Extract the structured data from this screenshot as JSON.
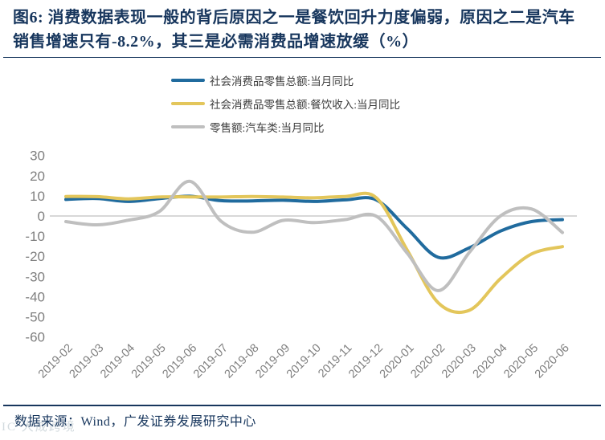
{
  "title": {
    "line1": "图6: 消费数据表现一般的背后原因之一是餐饮回升力度偏弱，原因之二是汽车",
    "line2": "销售增速只有-8.2%，其三是必需消费品增速放缓（%）"
  },
  "footer": {
    "source": "数据来源：Wind，广发证券发展研究中心"
  },
  "watermark": "IC 大成跨境",
  "chart_data": {
    "type": "line",
    "title": "",
    "xlabel": "",
    "ylabel": "",
    "categories": [
      "2019-02",
      "2019-03",
      "2019-04",
      "2019-05",
      "2019-06",
      "2019-07",
      "2019-08",
      "2019-09",
      "2019-10",
      "2019-11",
      "2019-12",
      "2020-01",
      "2020-02",
      "2020-03",
      "2020-04",
      "2020-05",
      "2020-06"
    ],
    "series": [
      {
        "name": "社会消费品零售总额:当月同比",
        "color": "#206B9E",
        "values": [
          8.2,
          8.7,
          7.2,
          8.6,
          9.8,
          7.6,
          7.5,
          7.8,
          7.2,
          8.0,
          8.0,
          -6.3,
          -20.5,
          -15.8,
          -7.5,
          -2.8,
          -1.8
        ]
      },
      {
        "name": "社会消费品零售总额:餐饮收入:当月同比",
        "color": "#E3C65B",
        "values": [
          9.7,
          9.6,
          8.5,
          9.4,
          9.5,
          9.4,
          9.7,
          9.4,
          9.0,
          9.7,
          9.1,
          -17.0,
          -43.1,
          -46.8,
          -31.1,
          -18.9,
          -15.2
        ]
      },
      {
        "name": "零售额:汽车类:当月同比",
        "color": "#BFBFBF",
        "values": [
          -2.8,
          -4.4,
          -2.1,
          2.1,
          17.2,
          -2.6,
          -8.1,
          -2.2,
          -3.3,
          -1.8,
          -0.1,
          -18.5,
          -37.0,
          -18.1,
          0.0,
          3.5,
          -8.2
        ]
      }
    ],
    "ylim": [
      -60,
      30
    ],
    "yticks": [
      30,
      20,
      10,
      0,
      -10,
      -20,
      -30,
      -40,
      -50,
      -60
    ],
    "grid": "zero-line-only",
    "legend_position": "top",
    "smoothing": "spline"
  }
}
